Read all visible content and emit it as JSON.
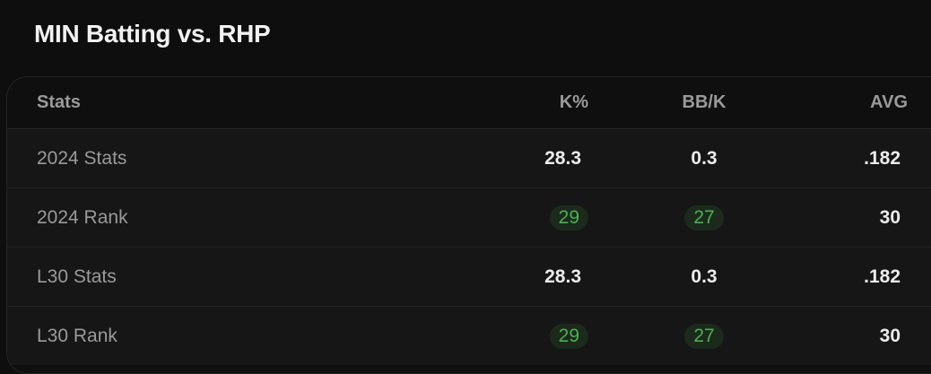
{
  "title": "MIN Batting vs. RHP",
  "table": {
    "headers": [
      "Stats",
      "K%",
      "BB/K",
      "AVG"
    ],
    "rows": [
      {
        "label": "2024 Stats",
        "k_pct": "28.3",
        "bb_k": "0.3",
        "avg": ".182",
        "highlight": false
      },
      {
        "label": "2024 Rank",
        "k_pct": "29",
        "bb_k": "27",
        "avg": "30",
        "highlight": true
      },
      {
        "label": "L30 Stats",
        "k_pct": "28.3",
        "bb_k": "0.3",
        "avg": ".182",
        "highlight": false
      },
      {
        "label": "L30 Rank",
        "k_pct": "29",
        "bb_k": "27",
        "avg": "30",
        "highlight": true
      }
    ]
  },
  "colors": {
    "background": "#0e0e0e",
    "rank_highlight": "#4caf50",
    "rank_pill_bg": "#1b2a1c"
  }
}
